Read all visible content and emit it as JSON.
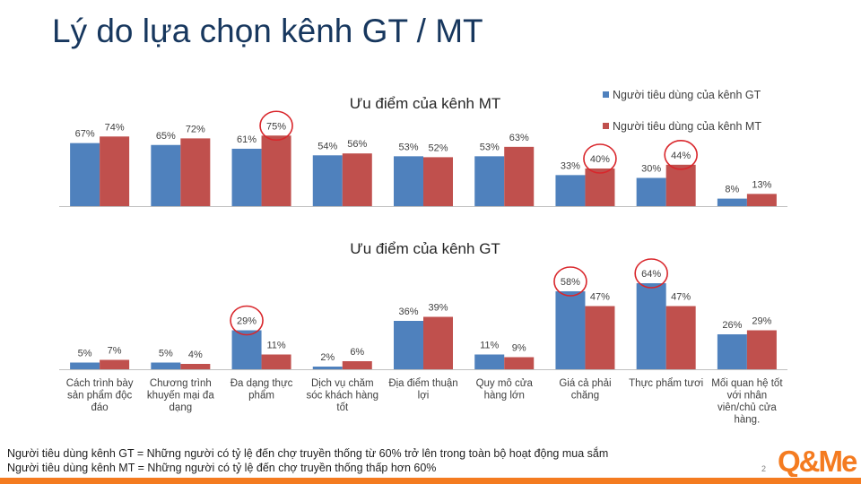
{
  "page": {
    "title": "Lý do lựa chọn kênh GT / MT",
    "page_number": "2",
    "footnotes": [
      "Người tiêu dùng kênh GT = Những người có tỷ lệ đến chợ truyền thống từ 60% trở lên trong toàn bộ hoạt động mua sắm",
      "Người tiêu dùng kênh MT = Những người có tỷ lệ đến chợ truyền thống thấp hơn 60%"
    ],
    "logo_text": "Q&Me"
  },
  "colors": {
    "gt": "#4f81bd",
    "mt": "#c0504d",
    "highlight_circle": "#d9262b",
    "logo_orange": "#f47b20",
    "title": "#17375e"
  },
  "chart_data": {
    "type": "bar",
    "legend": {
      "position": "top-right",
      "entries": [
        "Người tiêu dùng của kênh GT",
        "Người tiêu dùng của kênh MT"
      ]
    },
    "categories": [
      "Cách trình bày sản phẩm độc đáo",
      "Chương trình khuyến mại đa dạng",
      "Đa dạng thực phẩm",
      "Dịch vụ chăm sóc khách hàng tốt",
      "Địa điểm thuận lợi",
      "Quy mô cửa hàng lớn",
      "Giá cả phải chăng",
      "Thực phẩm tươi",
      "Mối quan hệ tốt với nhân viên/chủ cửa hàng."
    ],
    "category_lines": [
      [
        "Cách trình bày",
        "sản phẩm độc",
        "đáo"
      ],
      [
        "Chương trình",
        "khuyến mại đa",
        "dạng"
      ],
      [
        "Đa dạng thực",
        "phẩm"
      ],
      [
        "Dịch vụ chăm",
        "sóc khách hàng",
        "tốt"
      ],
      [
        "Địa điểm thuận",
        "lợi"
      ],
      [
        "Quy mô cửa",
        "hàng lớn"
      ],
      [
        "Giá cả phải",
        "chăng"
      ],
      [
        "Thực phẩm tươi"
      ],
      [
        "Mối quan hệ tốt",
        "với nhân",
        "viên/chủ cửa",
        "hàng."
      ]
    ],
    "charts": [
      {
        "title": "Ưu điểm của kênh MT",
        "ylim": [
          0,
          80
        ],
        "series": [
          {
            "name": "Người tiêu dùng của kênh GT",
            "values": [
              67,
              65,
              61,
              54,
              53,
              53,
              33,
              30,
              8
            ]
          },
          {
            "name": "Người tiêu dùng của kênh MT",
            "values": [
              74,
              72,
              75,
              56,
              52,
              63,
              40,
              44,
              13
            ]
          }
        ],
        "highlighted": [
          {
            "category_index": 2,
            "series_index": 1
          },
          {
            "category_index": 6,
            "series_index": 1
          },
          {
            "category_index": 7,
            "series_index": 1
          }
        ]
      },
      {
        "title": "Ưu điểm của kênh GT",
        "ylim": [
          0,
          70
        ],
        "series": [
          {
            "name": "Người tiêu dùng của kênh GT",
            "values": [
              5,
              5,
              29,
              2,
              36,
              11,
              58,
              64,
              26
            ]
          },
          {
            "name": "Người tiêu dùng của kênh MT",
            "values": [
              7,
              4,
              11,
              6,
              39,
              9,
              47,
              47,
              29
            ]
          }
        ],
        "highlighted": [
          {
            "category_index": 2,
            "series_index": 0
          },
          {
            "category_index": 6,
            "series_index": 0
          },
          {
            "category_index": 7,
            "series_index": 0
          }
        ]
      }
    ]
  }
}
